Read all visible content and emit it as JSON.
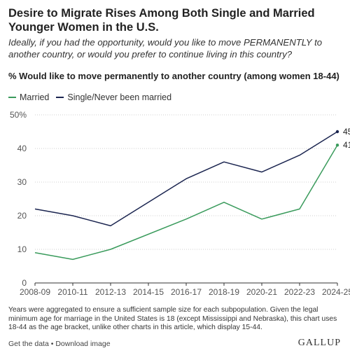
{
  "title": "Desire to Migrate Rises Among Both Single and Married Younger Women in the U.S.",
  "subtitle": "Ideally, if you had the opportunity, would you like to move PERMANENTLY to another country, or would you prefer to continue living in this country?",
  "chart_heading": "% Would like to move permanently to another country (among women 18-44)",
  "note": "Years were aggregated to ensure a sufficient sample size for each subpopulation. Given the legal minimum age for marriage in the United States is 18 (except Mississippi and Nebraska), this chart uses 18-44 as the age bracket, unlike other charts in this article, which display 15-44.",
  "footer": {
    "get_data": "Get the data",
    "separator": "•",
    "download": "Download image",
    "brand": "GALLUP"
  },
  "chart_data": {
    "type": "line",
    "categories": [
      "2008-09",
      "2010-11",
      "2012-13",
      "2014-15",
      "2016-17",
      "2018-19",
      "2020-21",
      "2022-23",
      "2024-25"
    ],
    "series": [
      {
        "name": "Married",
        "color": "#3a9b5c",
        "values": [
          9,
          7,
          10,
          null,
          19,
          24,
          19,
          22,
          41
        ],
        "end_label": "41"
      },
      {
        "name": "Single/Never been married",
        "color": "#1b2550",
        "values": [
          22,
          20,
          17,
          null,
          31,
          36,
          33,
          38,
          45
        ],
        "end_label": "45"
      }
    ],
    "ylim": [
      0,
      50
    ],
    "yticks": [
      "0",
      "10",
      "20",
      "30",
      "40",
      "50%"
    ],
    "grid": true,
    "legend": "top-left"
  }
}
